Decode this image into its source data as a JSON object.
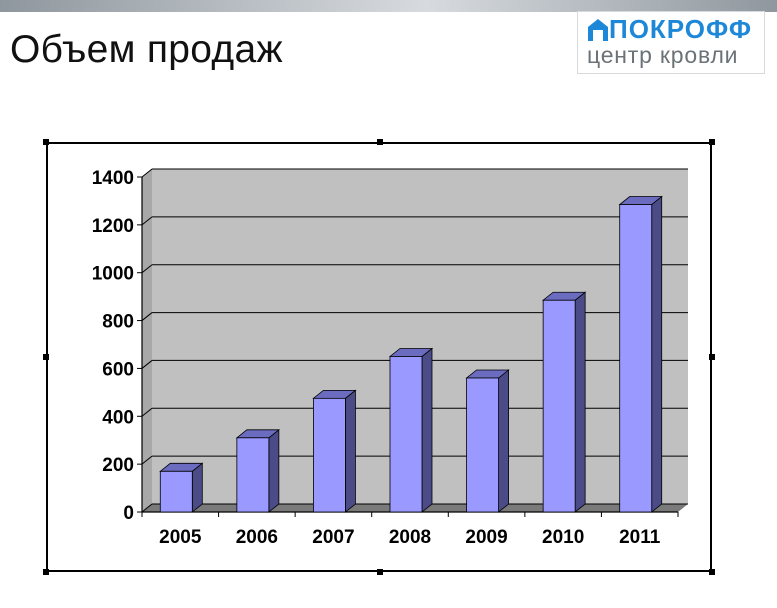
{
  "slide": {
    "title": "Объем продаж"
  },
  "logo": {
    "name": "ПОКРОФФ",
    "subtitle": "центр кровли"
  },
  "colors": {
    "bar_front": "#9999ff",
    "bar_side": "#4b4b88",
    "bar_top": "#6b6bc0",
    "plot_wall": "#c0c0c0",
    "floor": "#7a7a7a"
  },
  "chart_data": {
    "type": "bar",
    "categories": [
      "2005",
      "2006",
      "2007",
      "2008",
      "2009",
      "2010",
      "2011"
    ],
    "values": [
      170,
      310,
      475,
      650,
      560,
      885,
      1285
    ],
    "ylim": [
      0,
      1400
    ],
    "yticks": [
      0,
      200,
      400,
      600,
      800,
      1000,
      1200,
      1400
    ],
    "grid": true,
    "legend": "none",
    "style": "3d-column"
  }
}
